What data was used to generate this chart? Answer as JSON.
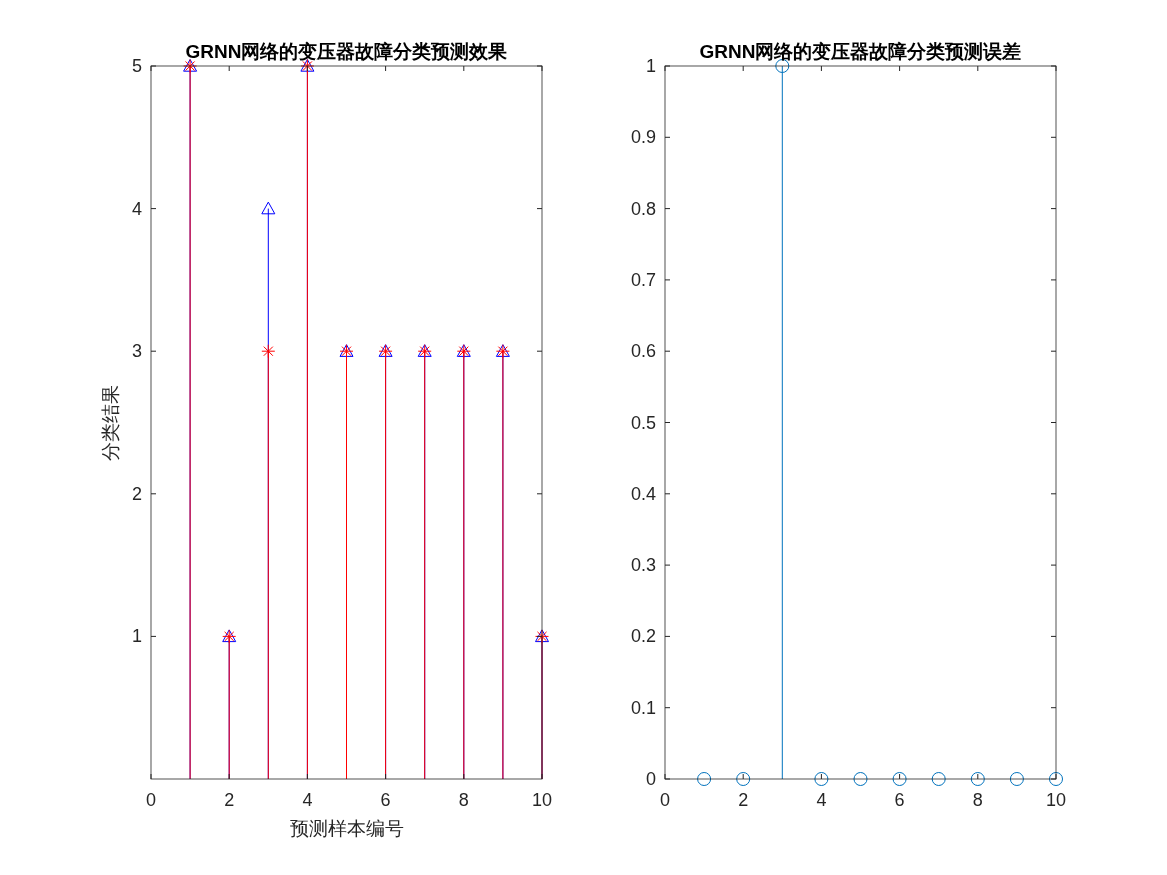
{
  "chart_data": [
    {
      "type": "lollipop",
      "title": "GRNN网络的变压器故障分类预测效果",
      "xlabel": "预测样本编号",
      "ylabel": "分类结果",
      "x": [
        1,
        2,
        3,
        4,
        5,
        6,
        7,
        8,
        9,
        10
      ],
      "xlim": [
        0,
        10
      ],
      "xticks": [
        0,
        2,
        4,
        6,
        8,
        10
      ],
      "ylim": [
        0,
        5
      ],
      "yticks": [
        1,
        2,
        3,
        4,
        5
      ],
      "series": [
        {
          "color": "#0000ff",
          "marker": "triangle",
          "values": [
            5,
            1,
            4,
            5,
            3,
            3,
            3,
            3,
            3,
            1
          ]
        },
        {
          "color": "#ff0000",
          "marker": "cross",
          "values": [
            5,
            1,
            3,
            5,
            3,
            3,
            3,
            3,
            3,
            1
          ]
        }
      ]
    },
    {
      "type": "lollipop",
      "title": "GRNN网络的变压器故障分类预测误差",
      "x": [
        1,
        2,
        3,
        4,
        5,
        6,
        7,
        8,
        9,
        10
      ],
      "xlim": [
        0,
        10
      ],
      "xticks": [
        0,
        2,
        4,
        6,
        8,
        10
      ],
      "ylim": [
        0,
        1
      ],
      "yticks": [
        0,
        0.1,
        0.2,
        0.3,
        0.4,
        0.5,
        0.6,
        0.7,
        0.8,
        0.9,
        1
      ],
      "series": [
        {
          "color": "#0072bd",
          "marker": "circle",
          "values": [
            0,
            0,
            1,
            0,
            0,
            0,
            0,
            0,
            0,
            0
          ]
        }
      ]
    }
  ]
}
